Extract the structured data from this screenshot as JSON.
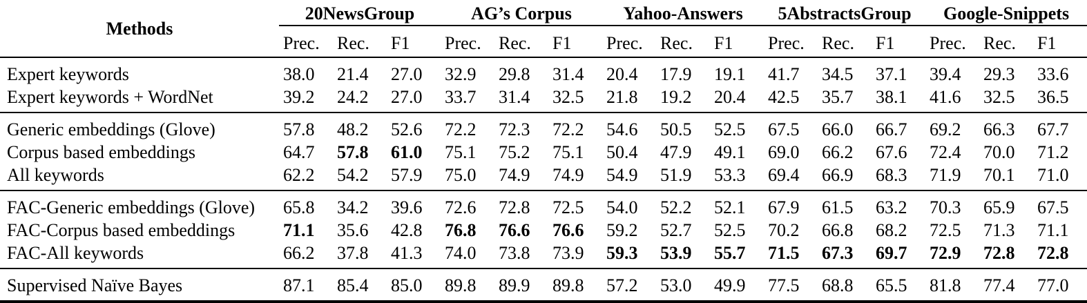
{
  "page": {
    "background_color": "#ffffff",
    "text_color": "#000000",
    "rule_color": "#000000"
  },
  "table": {
    "methods_header": "Methods",
    "metrics": [
      "Prec.",
      "Rec.",
      "F1"
    ],
    "datasets": [
      "20NewsGroup",
      "AG’s Corpus",
      "Yahoo-Answers",
      "5AbstractsGroup",
      "Google-Snippets"
    ],
    "groups": [
      {
        "rows": [
          {
            "method": "Expert keywords",
            "values": [
              "38.0",
              "21.4",
              "27.0",
              "32.9",
              "29.8",
              "31.4",
              "20.4",
              "17.9",
              "19.1",
              "41.7",
              "34.5",
              "37.1",
              "39.4",
              "29.3",
              "33.6"
            ],
            "bold": []
          },
          {
            "method": "Expert keywords + WordNet",
            "values": [
              "39.2",
              "24.2",
              "27.0",
              "33.7",
              "31.4",
              "32.5",
              "21.8",
              "19.2",
              "20.4",
              "42.5",
              "35.7",
              "38.1",
              "41.6",
              "32.5",
              "36.5"
            ],
            "bold": []
          }
        ]
      },
      {
        "rows": [
          {
            "method": "Generic embeddings (Glove)",
            "values": [
              "57.8",
              "48.2",
              "52.6",
              "72.2",
              "72.3",
              "72.2",
              "54.6",
              "50.5",
              "52.5",
              "67.5",
              "66.0",
              "66.7",
              "69.2",
              "66.3",
              "67.7"
            ],
            "bold": []
          },
          {
            "method": "Corpus based embeddings",
            "values": [
              "64.7",
              "57.8",
              "61.0",
              "75.1",
              "75.2",
              "75.1",
              "50.4",
              "47.9",
              "49.1",
              "69.0",
              "66.2",
              "67.6",
              "72.4",
              "70.0",
              "71.2"
            ],
            "bold": [
              1,
              2
            ]
          },
          {
            "method": "All keywords",
            "values": [
              "62.2",
              "54.2",
              "57.9",
              "75.0",
              "74.9",
              "74.9",
              "54.9",
              "51.9",
              "53.3",
              "69.4",
              "66.9",
              "68.3",
              "71.9",
              "70.1",
              "71.0"
            ],
            "bold": []
          }
        ]
      },
      {
        "rows": [
          {
            "method": "FAC-Generic embeddings (Glove)",
            "values": [
              "65.8",
              "34.2",
              "39.6",
              "72.6",
              "72.8",
              "72.5",
              "54.0",
              "52.2",
              "52.1",
              "67.9",
              "61.5",
              "63.2",
              "70.3",
              "65.9",
              "67.5"
            ],
            "bold": []
          },
          {
            "method": "FAC-Corpus based embeddings",
            "values": [
              "71.1",
              "35.6",
              "42.8",
              "76.8",
              "76.6",
              "76.6",
              "59.2",
              "52.7",
              "52.5",
              "70.2",
              "66.8",
              "68.2",
              "72.5",
              "71.3",
              "71.1"
            ],
            "bold": [
              0,
              3,
              4,
              5
            ]
          },
          {
            "method": "FAC-All keywords",
            "values": [
              "66.2",
              "37.8",
              "41.3",
              "74.0",
              "73.8",
              "73.9",
              "59.3",
              "53.9",
              "55.7",
              "71.5",
              "67.3",
              "69.7",
              "72.9",
              "72.8",
              "72.8"
            ],
            "bold": [
              6,
              7,
              8,
              9,
              10,
              11,
              12,
              13,
              14
            ]
          }
        ]
      },
      {
        "rows": [
          {
            "method": "Supervised Naïve Bayes",
            "values": [
              "87.1",
              "85.4",
              "85.0",
              "89.8",
              "89.9",
              "89.8",
              "57.2",
              "53.0",
              "49.9",
              "77.5",
              "68.8",
              "65.5",
              "81.8",
              "77.4",
              "77.0"
            ],
            "bold": []
          }
        ]
      }
    ]
  }
}
